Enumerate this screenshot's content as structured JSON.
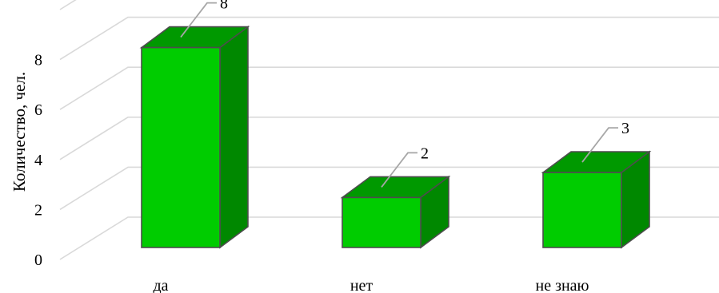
{
  "chart_data": {
    "type": "bar",
    "style": "3d-column",
    "categories": [
      "да",
      "нет",
      "не знаю"
    ],
    "values": [
      8,
      2,
      3
    ],
    "data_labels": [
      "8",
      "2",
      "3"
    ],
    "title": "",
    "xlabel": "",
    "ylabel": "Количество, чел.",
    "ylim": [
      0,
      8
    ],
    "yticks": [
      0,
      2,
      4,
      6,
      8
    ],
    "grid": true,
    "legend": "none",
    "colors": {
      "front": "#00cc00",
      "top": "#009900",
      "side": "#008800",
      "edge": "#4d4d4d",
      "grid": "#d9d9d9",
      "leader": "#a6a6a6"
    }
  }
}
